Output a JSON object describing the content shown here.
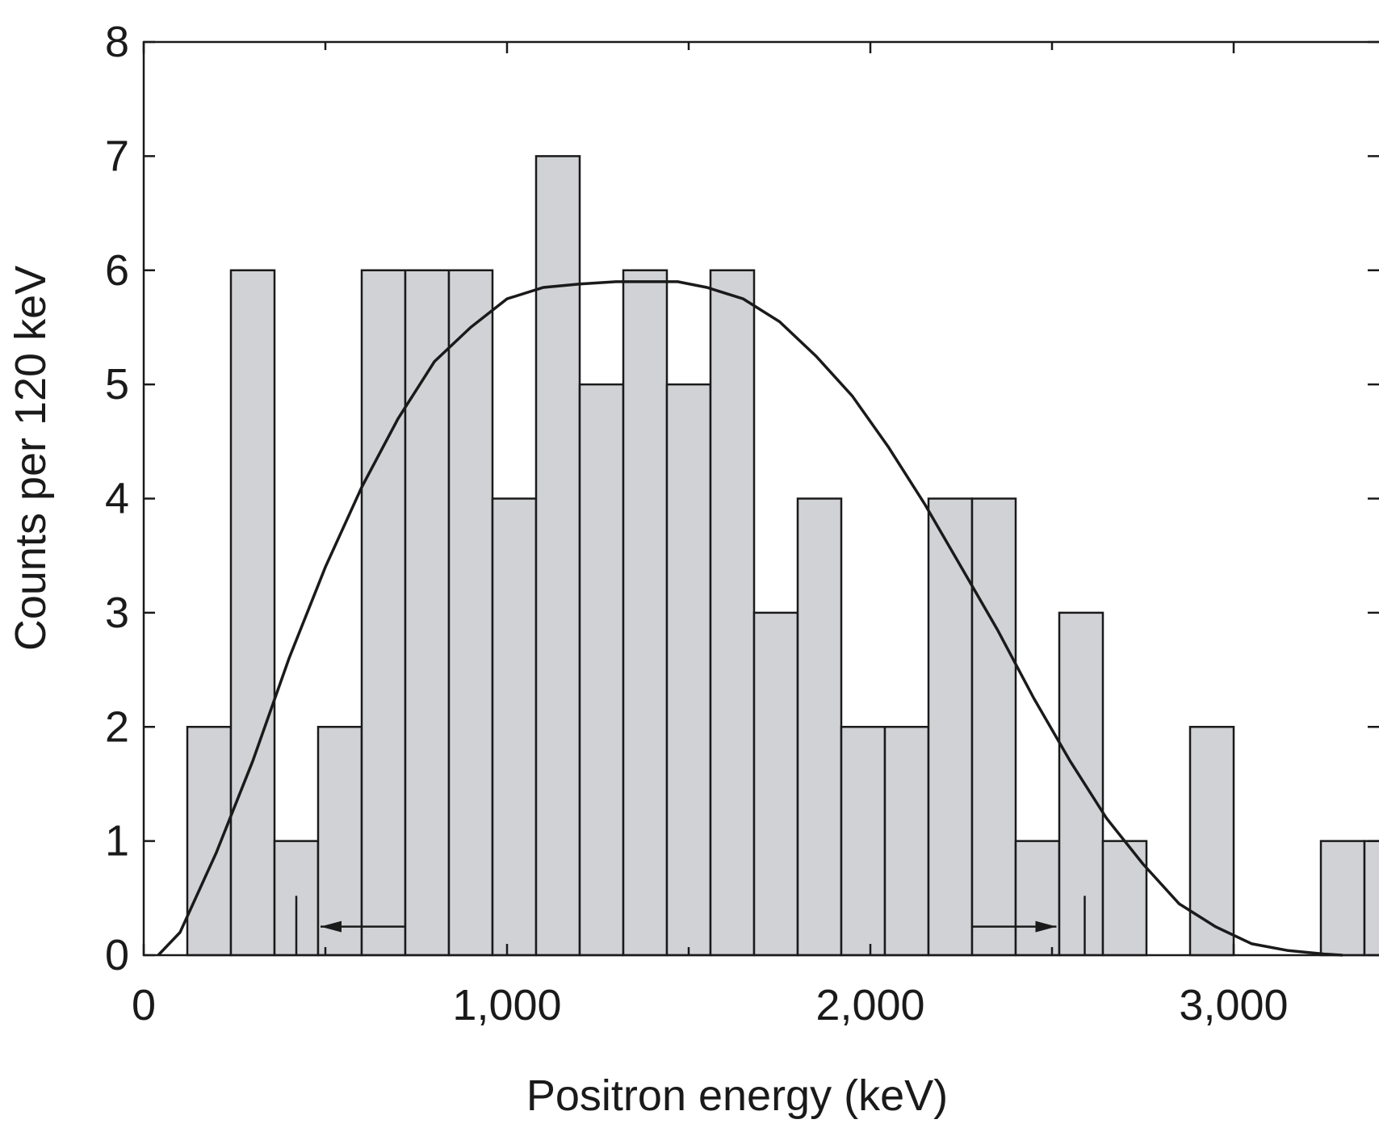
{
  "chart_data": {
    "type": "bar",
    "subtype": "histogram",
    "xlabel": "Positron energy (keV)",
    "ylabel": "Counts per 120 keV",
    "xlim": [
      0,
      3400
    ],
    "ylim": [
      0,
      8
    ],
    "xticks": [
      {
        "value": 0,
        "label": "0"
      },
      {
        "value": 1000,
        "label": "1,000"
      },
      {
        "value": 2000,
        "label": "2,000"
      },
      {
        "value": 3000,
        "label": "3,000"
      }
    ],
    "yticks": [
      {
        "value": 0,
        "label": "0"
      },
      {
        "value": 1,
        "label": "1"
      },
      {
        "value": 2,
        "label": "2"
      },
      {
        "value": 3,
        "label": "3"
      },
      {
        "value": 4,
        "label": "4"
      },
      {
        "value": 5,
        "label": "5"
      },
      {
        "value": 6,
        "label": "6"
      },
      {
        "value": 7,
        "label": "7"
      },
      {
        "value": 8,
        "label": "8"
      }
    ],
    "bin_width_keV": 120,
    "bins": [
      {
        "start": 120,
        "count": 2
      },
      {
        "start": 240,
        "count": 6
      },
      {
        "start": 360,
        "count": 1
      },
      {
        "start": 480,
        "count": 2
      },
      {
        "start": 600,
        "count": 6
      },
      {
        "start": 720,
        "count": 6
      },
      {
        "start": 840,
        "count": 6
      },
      {
        "start": 960,
        "count": 4
      },
      {
        "start": 1080,
        "count": 7
      },
      {
        "start": 1200,
        "count": 5
      },
      {
        "start": 1320,
        "count": 6
      },
      {
        "start": 1440,
        "count": 5
      },
      {
        "start": 1560,
        "count": 6
      },
      {
        "start": 1680,
        "count": 3
      },
      {
        "start": 1800,
        "count": 4
      },
      {
        "start": 1920,
        "count": 2
      },
      {
        "start": 2040,
        "count": 2
      },
      {
        "start": 2160,
        "count": 4
      },
      {
        "start": 2280,
        "count": 4
      },
      {
        "start": 2400,
        "count": 1
      },
      {
        "start": 2520,
        "count": 3
      },
      {
        "start": 2640,
        "count": 1
      },
      {
        "start": 2880,
        "count": 2
      },
      {
        "start": 3240,
        "count": 1
      },
      {
        "start": 3360,
        "count": 1
      }
    ],
    "fit_curve": {
      "x": [
        40,
        100,
        200,
        300,
        400,
        500,
        600,
        700,
        800,
        900,
        1000,
        1100,
        1200,
        1300,
        1400,
        1470,
        1550,
        1650,
        1750,
        1850,
        1950,
        2050,
        2150,
        2250,
        2350,
        2450,
        2550,
        2650,
        2750,
        2850,
        2950,
        3050,
        3150,
        3250,
        3300
      ],
      "y": [
        0,
        0.2,
        0.9,
        1.7,
        2.6,
        3.4,
        4.1,
        4.7,
        5.2,
        5.5,
        5.75,
        5.85,
        5.88,
        5.9,
        5.9,
        5.9,
        5.85,
        5.75,
        5.55,
        5.25,
        4.9,
        4.45,
        3.95,
        3.4,
        2.85,
        2.25,
        1.7,
        1.2,
        0.8,
        0.45,
        0.25,
        0.1,
        0.04,
        0.01,
        0
      ],
      "color": "#1a1a1a"
    },
    "markers": [
      {
        "x": 420,
        "direction": "left"
      },
      {
        "x": 2590,
        "direction": "right"
      }
    ],
    "colors": {
      "bar_fill": "#d0d2d5",
      "bar_stroke": "#1a1a1a",
      "axis": "#1a1a1a"
    }
  }
}
